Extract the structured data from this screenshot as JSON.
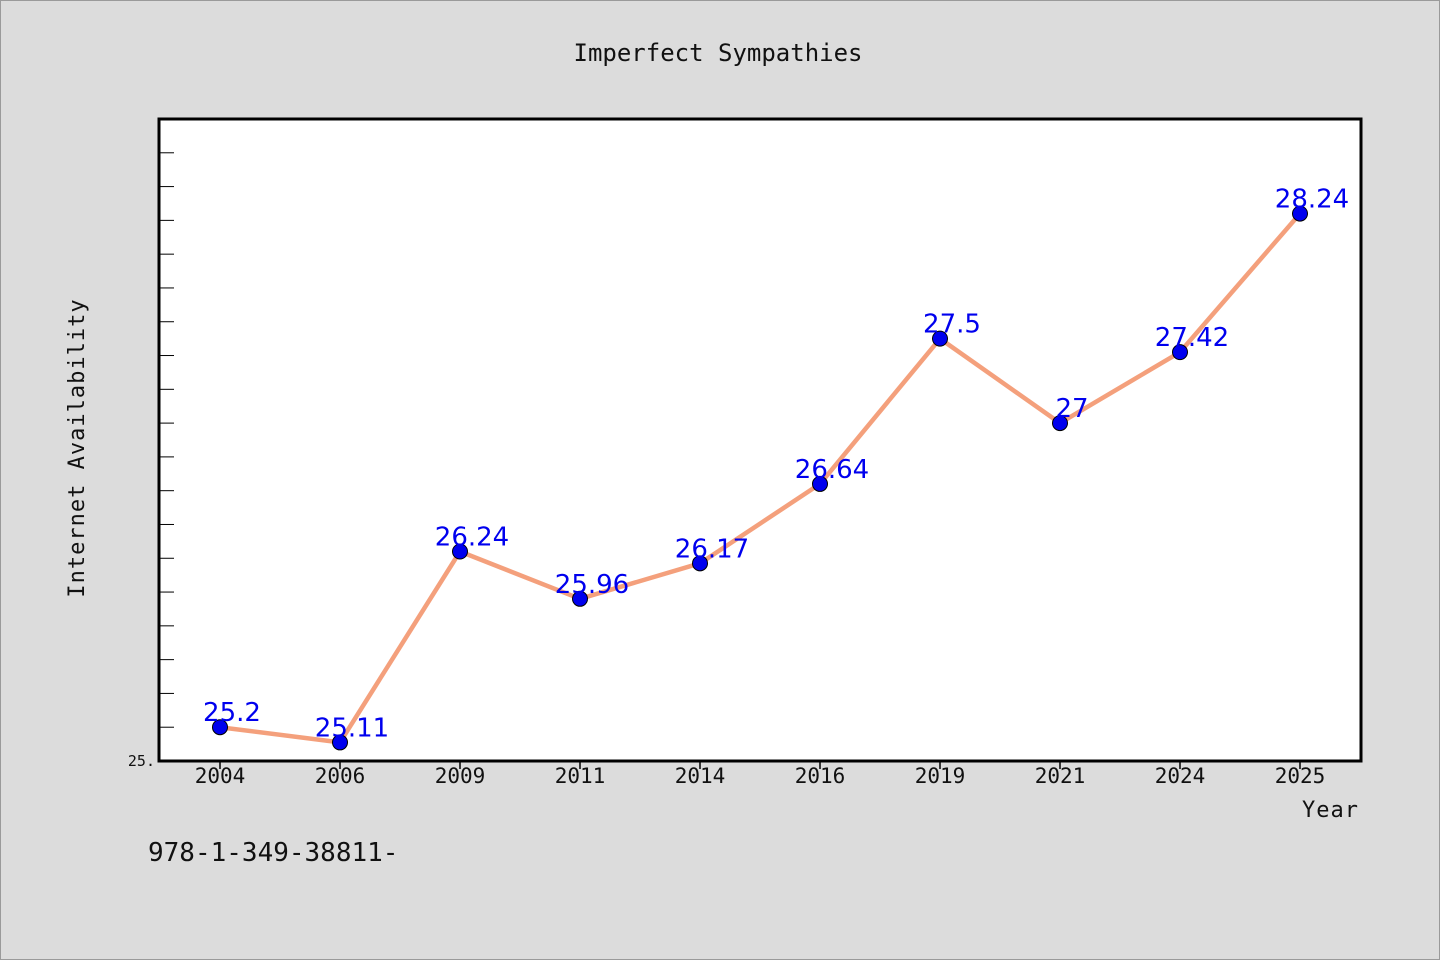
{
  "chart_data": {
    "type": "line",
    "title": "Imperfect Sympathies",
    "xlabel": "Year",
    "ylabel": "Internet Availability",
    "categories": [
      "2004",
      "2006",
      "2009",
      "2011",
      "2014",
      "2016",
      "2019",
      "2021",
      "2024",
      "2025"
    ],
    "series": [
      {
        "values": [
          25.2,
          25.11,
          26.24,
          25.96,
          26.17,
          26.64,
          27.5,
          27,
          27.42,
          28.24
        ],
        "line_color": "#f4a07c",
        "marker_color": "#0000ee",
        "label_color": "#0000ee"
      }
    ],
    "data_labels": [
      "25.2",
      "25.11",
      "26.24",
      "25.96",
      "26.17",
      "26.64",
      "27.5",
      "27",
      "27.42",
      "28.24"
    ],
    "ylim": [
      25,
      28.8
    ],
    "y_tick_label": "25.",
    "grid": false,
    "legend": "none"
  },
  "footer": {
    "isbn_text": "978-1-349-38811-"
  },
  "colors": {
    "background": "#dcdcdc",
    "plot_background": "#ffffff",
    "axis": "#000000"
  }
}
